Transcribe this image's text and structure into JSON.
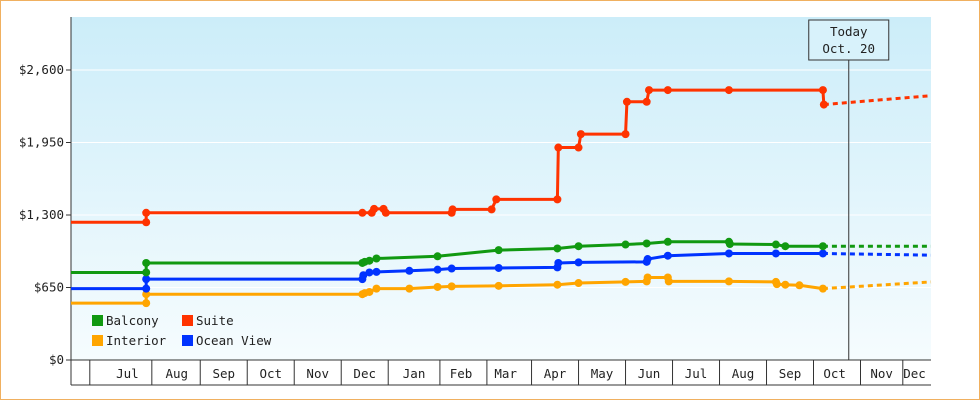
{
  "chart_data": {
    "type": "line",
    "y_ticks": [
      {
        "value": 0,
        "label": "$0"
      },
      {
        "value": 650,
        "label": "$650"
      },
      {
        "value": 1300,
        "label": "$1,300"
      },
      {
        "value": 1950,
        "label": "$1,950"
      },
      {
        "value": 2600,
        "label": "$2,600"
      }
    ],
    "ylim": [
      0,
      2600
    ],
    "x_ticks": [
      {
        "value": 1.2,
        "label": "Jul"
      },
      {
        "value": 2.25,
        "label": "Aug"
      },
      {
        "value": 3.25,
        "label": "Sep"
      },
      {
        "value": 4.25,
        "label": "Oct"
      },
      {
        "value": 5.25,
        "label": "Nov"
      },
      {
        "value": 6.25,
        "label": "Dec"
      },
      {
        "value": 7.3,
        "label": "Jan"
      },
      {
        "value": 8.3,
        "label": "Feb"
      },
      {
        "value": 9.25,
        "label": "Mar"
      },
      {
        "value": 10.3,
        "label": "Apr"
      },
      {
        "value": 11.3,
        "label": "May"
      },
      {
        "value": 12.3,
        "label": "Jun"
      },
      {
        "value": 13.3,
        "label": "Jul"
      },
      {
        "value": 14.3,
        "label": "Aug"
      },
      {
        "value": 15.3,
        "label": "Sep"
      },
      {
        "value": 16.25,
        "label": "Oct"
      },
      {
        "value": 17.25,
        "label": "Nov"
      },
      {
        "value": 17.95,
        "label": "Dec"
      }
    ],
    "x_boundaries": [
      0.4,
      1.72,
      2.75,
      3.75,
      4.75,
      5.75,
      6.75,
      7.85,
      8.85,
      9.8,
      10.8,
      11.8,
      12.8,
      13.8,
      14.8,
      15.8,
      16.8,
      17.7
    ],
    "xlim": [
      0,
      18.3
    ],
    "today": {
      "x": 16.55,
      "line1": "Today",
      "line2": "Oct. 20"
    },
    "legend": {
      "placement": "bottom-left"
    },
    "series": [
      {
        "name": "Suite",
        "color": "#ff3300",
        "points": [
          [
            0.0,
            1235
          ],
          [
            1.6,
            1235
          ],
          [
            1.6,
            1320
          ],
          [
            6.2,
            1320
          ],
          [
            6.4,
            1320
          ],
          [
            6.45,
            1355
          ],
          [
            6.65,
            1355
          ],
          [
            6.7,
            1320
          ],
          [
            8.1,
            1320
          ],
          [
            8.12,
            1350
          ],
          [
            8.95,
            1350
          ],
          [
            9.05,
            1440
          ],
          [
            10.35,
            1440
          ],
          [
            10.37,
            1905
          ],
          [
            10.8,
            1905
          ],
          [
            10.85,
            2025
          ],
          [
            11.8,
            2025
          ],
          [
            11.83,
            2315
          ],
          [
            12.25,
            2315
          ],
          [
            12.3,
            2420
          ],
          [
            12.7,
            2420
          ],
          [
            14.0,
            2420
          ],
          [
            16.0,
            2420
          ],
          [
            16.02,
            2290
          ]
        ],
        "forecast": [
          [
            16.02,
            2290
          ],
          [
            18.3,
            2370
          ]
        ]
      },
      {
        "name": "Balcony",
        "color": "#119911",
        "points": [
          [
            0.0,
            785
          ],
          [
            1.6,
            785
          ],
          [
            1.6,
            870
          ],
          [
            6.2,
            870
          ],
          [
            6.25,
            880
          ],
          [
            6.35,
            890
          ],
          [
            6.5,
            910
          ],
          [
            7.8,
            930
          ],
          [
            9.1,
            985
          ],
          [
            10.35,
            1000
          ],
          [
            10.8,
            1020
          ],
          [
            11.8,
            1035
          ],
          [
            12.25,
            1045
          ],
          [
            12.7,
            1060
          ],
          [
            14.0,
            1060
          ],
          [
            14.02,
            1040
          ],
          [
            15.0,
            1035
          ],
          [
            15.2,
            1020
          ],
          [
            16.0,
            1020
          ]
        ],
        "forecast": [
          [
            16.0,
            1020
          ],
          [
            18.3,
            1020
          ]
        ]
      },
      {
        "name": "Interior",
        "color": "#ffa500",
        "points": [
          [
            0.0,
            510
          ],
          [
            1.6,
            510
          ],
          [
            1.6,
            590
          ],
          [
            6.2,
            590
          ],
          [
            6.25,
            600
          ],
          [
            6.35,
            610
          ],
          [
            6.5,
            640
          ],
          [
            7.2,
            640
          ],
          [
            7.8,
            655
          ],
          [
            8.1,
            660
          ],
          [
            9.1,
            665
          ],
          [
            10.35,
            675
          ],
          [
            10.8,
            690
          ],
          [
            11.8,
            700
          ],
          [
            12.25,
            705
          ],
          [
            12.27,
            740
          ],
          [
            12.7,
            740
          ],
          [
            12.72,
            705
          ],
          [
            14.0,
            705
          ],
          [
            15.0,
            700
          ],
          [
            15.02,
            680
          ],
          [
            15.2,
            675
          ],
          [
            15.5,
            670
          ],
          [
            16.0,
            640
          ]
        ],
        "forecast": [
          [
            16.0,
            640
          ],
          [
            18.3,
            700
          ]
        ]
      },
      {
        "name": "Ocean View",
        "color": "#0033ff",
        "points": [
          [
            0.0,
            640
          ],
          [
            1.6,
            640
          ],
          [
            1.6,
            725
          ],
          [
            6.2,
            725
          ],
          [
            6.22,
            760
          ],
          [
            6.35,
            785
          ],
          [
            6.5,
            790
          ],
          [
            7.2,
            800
          ],
          [
            7.8,
            810
          ],
          [
            8.1,
            820
          ],
          [
            9.1,
            825
          ],
          [
            10.35,
            830
          ],
          [
            10.37,
            870
          ],
          [
            10.8,
            875
          ],
          [
            12.25,
            880
          ],
          [
            12.27,
            905
          ],
          [
            12.7,
            935
          ],
          [
            14.0,
            955
          ],
          [
            15.0,
            955
          ],
          [
            16.0,
            955
          ]
        ],
        "forecast": [
          [
            16.0,
            955
          ],
          [
            18.3,
            940
          ]
        ]
      }
    ]
  }
}
